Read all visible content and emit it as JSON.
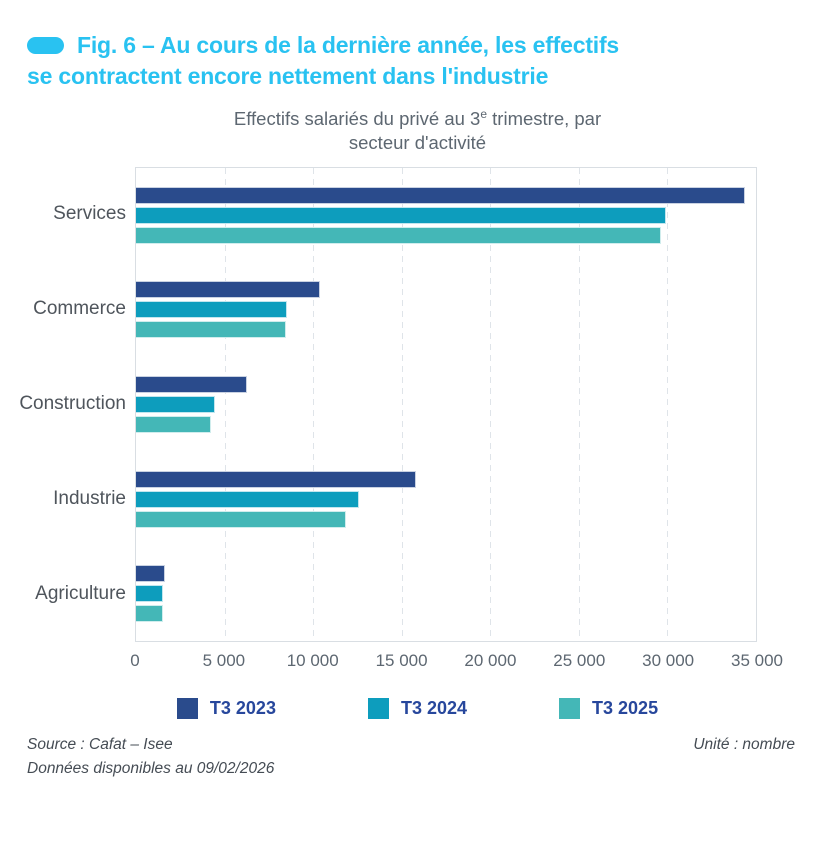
{
  "figure": {
    "title_line1": "Fig. 6 – Au cours de la dernière année, les effectifs",
    "title_line2": "se contractent encore nettement dans l'industrie"
  },
  "subtitle": {
    "pre": "Effectifs salariés du privé au 3",
    "sup": "e",
    "post": " trimestre, par",
    "line2": "secteur d'activité"
  },
  "footer": {
    "source_line1": "Source : Cafat – Isee",
    "source_line2": "Données disponibles au 09/02/2026",
    "unit": "Unité : nombre"
  },
  "colors": {
    "accent_cyan": "#29c2f1",
    "grid": "#dfe4e9",
    "plot_border": "#d9dee3",
    "legend_text": "#27479c"
  },
  "chart_data": {
    "type": "bar",
    "orientation": "horizontal",
    "title": "Effectifs salariés du privé au 3e trimestre, par secteur d'activité",
    "categories": [
      "Services",
      "Commerce",
      "Construction",
      "Industrie",
      "Agriculture"
    ],
    "series": [
      {
        "name": "T3 2023",
        "color": "#2a4b8c",
        "values": [
          34400,
          10400,
          6250,
          15800,
          1650
        ]
      },
      {
        "name": "T3 2024",
        "color": "#0d9dbd",
        "values": [
          29900,
          8500,
          4450,
          12600,
          1550
        ]
      },
      {
        "name": "T3 2025",
        "color": "#44b7b7",
        "values": [
          29650,
          8450,
          4250,
          11850,
          1500
        ]
      }
    ],
    "xlim": [
      0,
      35000
    ],
    "x_ticks": [
      {
        "value": 0,
        "label": "0"
      },
      {
        "value": 5000,
        "label": "5 000"
      },
      {
        "value": 10000,
        "label": "10 000"
      },
      {
        "value": 15000,
        "label": "15 000"
      },
      {
        "value": 20000,
        "label": "20 000"
      },
      {
        "value": 25000,
        "label": "25 000"
      },
      {
        "value": 30000,
        "label": "30 000"
      },
      {
        "value": 35000,
        "label": "35 000"
      }
    ],
    "grid": "vertical-dashed",
    "legend_position": "bottom",
    "unit": "nombre"
  }
}
